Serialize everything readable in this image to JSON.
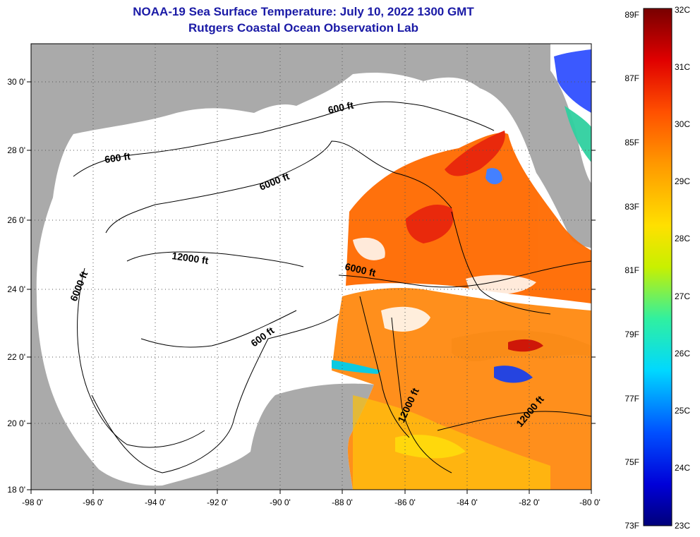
{
  "title": "NOAA-19 Sea Surface Temperature:  July 10, 2022 1300 GMT",
  "subtitle": "Rutgers Coastal Ocean Observation Lab",
  "axes": {
    "lat_labels": [
      "18 0'",
      "20 0'",
      "22 0'",
      "24 0'",
      "26 0'",
      "28 0'",
      "30 0'"
    ],
    "lon_labels": [
      "-98 0'",
      "-96 0'",
      "-94 0'",
      "-92 0'",
      "-90 0'",
      "-88 0'",
      "-86 0'",
      "-84 0'",
      "-82 0'",
      "-80 0'"
    ]
  },
  "contour_labels": [
    "600 ft",
    "600 ft",
    "6000 ft",
    "6000 ft",
    "6000 ft",
    "12000 ft",
    "600 ft",
    "12000 ft",
    "12000 ft"
  ],
  "colorbar": {
    "fahrenheit": [
      "89F",
      "87F",
      "85F",
      "83F",
      "81F",
      "79F",
      "77F",
      "75F",
      "73F"
    ],
    "celsius": [
      "32C",
      "31C",
      "30C",
      "29C",
      "28C",
      "27C",
      "26C",
      "25C",
      "24C",
      "23C"
    ]
  },
  "colors": {
    "land": "#aaaaaa",
    "no_data": "#ffffff",
    "title": "#1a1aa6"
  }
}
